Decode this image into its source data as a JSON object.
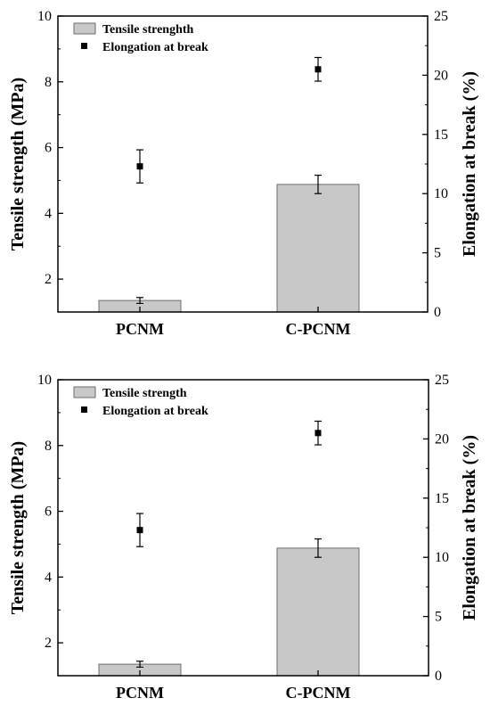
{
  "chart_data": [
    {
      "type": "bar",
      "categories": [
        "PCNM",
        "C-PCNM"
      ],
      "series": [
        {
          "name": "Tensile strenghth",
          "type": "bar",
          "axis": "left",
          "values": [
            1.35,
            4.88
          ],
          "errors": [
            0.09,
            0.28
          ],
          "color": "#c8c8c8"
        },
        {
          "name": "Elongation at break",
          "type": "scatter",
          "axis": "right",
          "values": [
            12.3,
            20.5
          ],
          "errors": [
            1.4,
            1.0
          ],
          "color": "#000000"
        }
      ],
      "ylabel": "Tensile strength (MPa)",
      "ylabel_right": "Elongation at break (%)",
      "ylim": [
        1,
        10
      ],
      "yticks": [
        2,
        4,
        6,
        8,
        10
      ],
      "ylim_right": [
        0,
        25
      ],
      "yticks_right": [
        0,
        5,
        10,
        15,
        20,
        25
      ],
      "legend": "top-left",
      "grid": false
    },
    {
      "type": "bar",
      "categories": [
        "PCNM",
        "C-PCNM"
      ],
      "series": [
        {
          "name": "Tensile strength",
          "type": "bar",
          "axis": "left",
          "values": [
            1.35,
            4.88
          ],
          "errors": [
            0.09,
            0.28
          ],
          "color": "#c8c8c8"
        },
        {
          "name": "Elongation at break",
          "type": "scatter",
          "axis": "right",
          "values": [
            12.3,
            20.5
          ],
          "errors": [
            1.4,
            1.0
          ],
          "color": "#000000"
        }
      ],
      "ylabel": "Tensile strength (MPa)",
      "ylabel_right": "Elongation at break (%)",
      "ylim": [
        1,
        10
      ],
      "yticks": [
        2,
        4,
        6,
        8,
        10
      ],
      "ylim_right": [
        0,
        25
      ],
      "yticks_right": [
        0,
        5,
        10,
        15,
        20,
        25
      ],
      "legend": "top-left",
      "grid": false
    }
  ]
}
